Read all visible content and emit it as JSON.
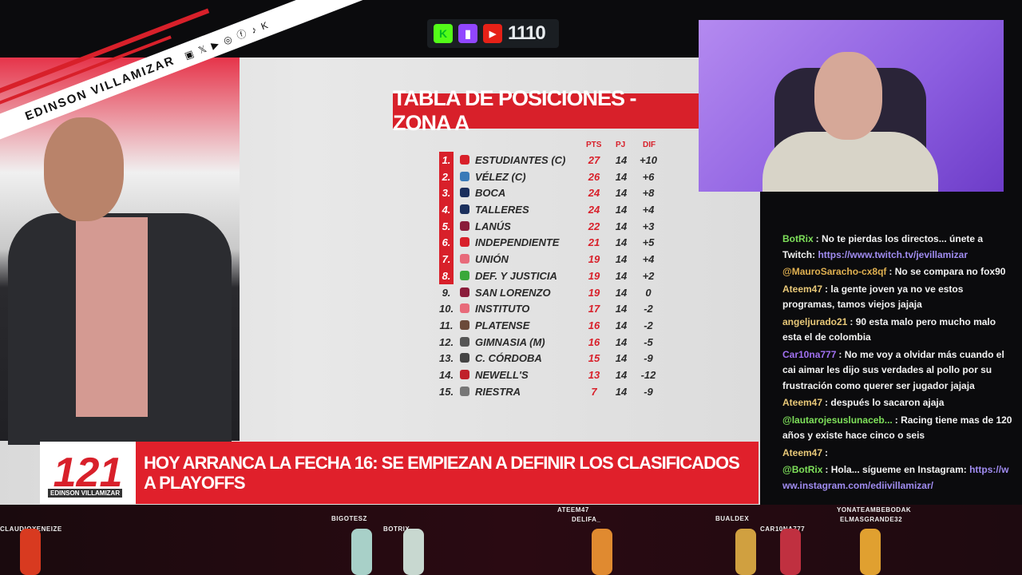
{
  "overlay": {
    "streamer_name": "EDINSON VILLAMIZAR",
    "social_icons": [
      "twitch-icon",
      "x-icon",
      "youtube-icon",
      "instagram-icon",
      "facebook-icon",
      "tiktok-icon",
      "kick-icon"
    ],
    "social_glyphs": "▣ 𝕏 ▶ ◎ ⓕ ♪ K"
  },
  "viewer_counter": {
    "platforms": [
      {
        "icon": "kick-icon",
        "glyph": "K",
        "color": "#53fc18"
      },
      {
        "icon": "twitch-icon",
        "glyph": "▮",
        "color": "#9146ff"
      },
      {
        "icon": "youtube-icon",
        "glyph": "▶",
        "color": "#e62117"
      }
    ],
    "count": "1110"
  },
  "broadcast": {
    "table_title": "TABLA DE POSICIONES - ZONA A",
    "columns": [
      "PTS",
      "PJ",
      "DIF"
    ],
    "rows": [
      {
        "rank": "1.",
        "team": "ESTUDIANTES (C)",
        "pts": "27",
        "pj": "14",
        "dif": "+10",
        "color": "#d8202a"
      },
      {
        "rank": "2.",
        "team": "VÉLEZ (C)",
        "pts": "26",
        "pj": "14",
        "dif": "+6",
        "color": "#3a7ab8"
      },
      {
        "rank": "3.",
        "team": "BOCA",
        "pts": "24",
        "pj": "14",
        "dif": "+8",
        "color": "#1b2f5c"
      },
      {
        "rank": "4.",
        "team": "TALLERES",
        "pts": "24",
        "pj": "14",
        "dif": "+4",
        "color": "#1b2f5c"
      },
      {
        "rank": "5.",
        "team": "LANÚS",
        "pts": "22",
        "pj": "14",
        "dif": "+3",
        "color": "#8a1c3a"
      },
      {
        "rank": "6.",
        "team": "INDEPENDIENTE",
        "pts": "21",
        "pj": "14",
        "dif": "+5",
        "color": "#d8202a"
      },
      {
        "rank": "7.",
        "team": "UNIÓN",
        "pts": "19",
        "pj": "14",
        "dif": "+4",
        "color": "#e86a7a"
      },
      {
        "rank": "8.",
        "team": "DEF. Y JUSTICIA",
        "pts": "19",
        "pj": "14",
        "dif": "+2",
        "color": "#3aa83a"
      },
      {
        "rank": "9.",
        "team": "SAN LORENZO",
        "pts": "19",
        "pj": "14",
        "dif": "0",
        "color": "#8a1c3a"
      },
      {
        "rank": "10.",
        "team": "INSTITUTO",
        "pts": "17",
        "pj": "14",
        "dif": "-2",
        "color": "#e86a7a"
      },
      {
        "rank": "11.",
        "team": "PLATENSE",
        "pts": "16",
        "pj": "14",
        "dif": "-2",
        "color": "#6b4a3a"
      },
      {
        "rank": "12.",
        "team": "GIMNASIA (M)",
        "pts": "16",
        "pj": "14",
        "dif": "-5",
        "color": "#555555"
      },
      {
        "rank": "13.",
        "team": "C. CÓRDOBA",
        "pts": "15",
        "pj": "14",
        "dif": "-9",
        "color": "#444444"
      },
      {
        "rank": "14.",
        "team": "NEWELL'S",
        "pts": "13",
        "pj": "14",
        "dif": "-12",
        "color": "#c0202a"
      },
      {
        "rank": "15.",
        "team": "RIESTRA",
        "pts": "7",
        "pj": "14",
        "dif": "-9",
        "color": "#777777"
      }
    ],
    "qualified_count": 8,
    "ticker_logo": "121",
    "ticker_logo_caption": "EDINSON VILLAMIZAR",
    "ticker_text": "HOY ARRANCA LA FECHA 16: SE EMPIEZAN A DEFINIR LOS CLASIFICADOS A PLAYOFFS"
  },
  "chat": [
    {
      "user": "BotRix",
      "color": "#7ee05a",
      "text": ": No te pierdas los directos... únete a Twitch: ",
      "link": "https://www.twitch.tv/jevillamizar"
    },
    {
      "user": "@MauroSaracho-cx8qf",
      "color": "#e0b050",
      "text": ": No se compara no fox90"
    },
    {
      "user": "Ateem47",
      "color": "#e8c878",
      "text": ": la gente joven ya no ve estos programas, tamos viejos jajaja"
    },
    {
      "user": "angeljurado21",
      "color": "#e8c878",
      "text": ": 90 esta malo pero mucho malo esta el de colombia"
    },
    {
      "user": "Car10na777",
      "color": "#a070f0",
      "text": ": No me voy a olvidar más cuando el cai aimar les dijo sus verdades al pollo por su frustración como querer ser jugador jajaja"
    },
    {
      "user": "Ateem47",
      "color": "#e8c878",
      "text": ": después lo sacaron ajaja"
    },
    {
      "user": "@lautarojesuslunaceb...",
      "color": "#7ee05a",
      "text": ": Racing tiene mas de 120 años y existe hace cinco o seis"
    },
    {
      "user": "Ateem47",
      "color": "#e8c878",
      "text": ": "
    },
    {
      "user": "@BotRix",
      "color": "#7ee05a",
      "text": ": Hola... sígueme en Instagram: ",
      "link": "https://www.instagram.com/ediivillamizar/"
    }
  ],
  "viewer_avatars": [
    "CLAUDIOXENEIZE",
    "BIGOTESZ",
    "BOTRIX",
    "ATEEM47",
    "DELIFA_",
    "BUALDEX",
    "CAR10NA777",
    "YONATEAMBEBODAK",
    "ELMASGRANDE32"
  ]
}
